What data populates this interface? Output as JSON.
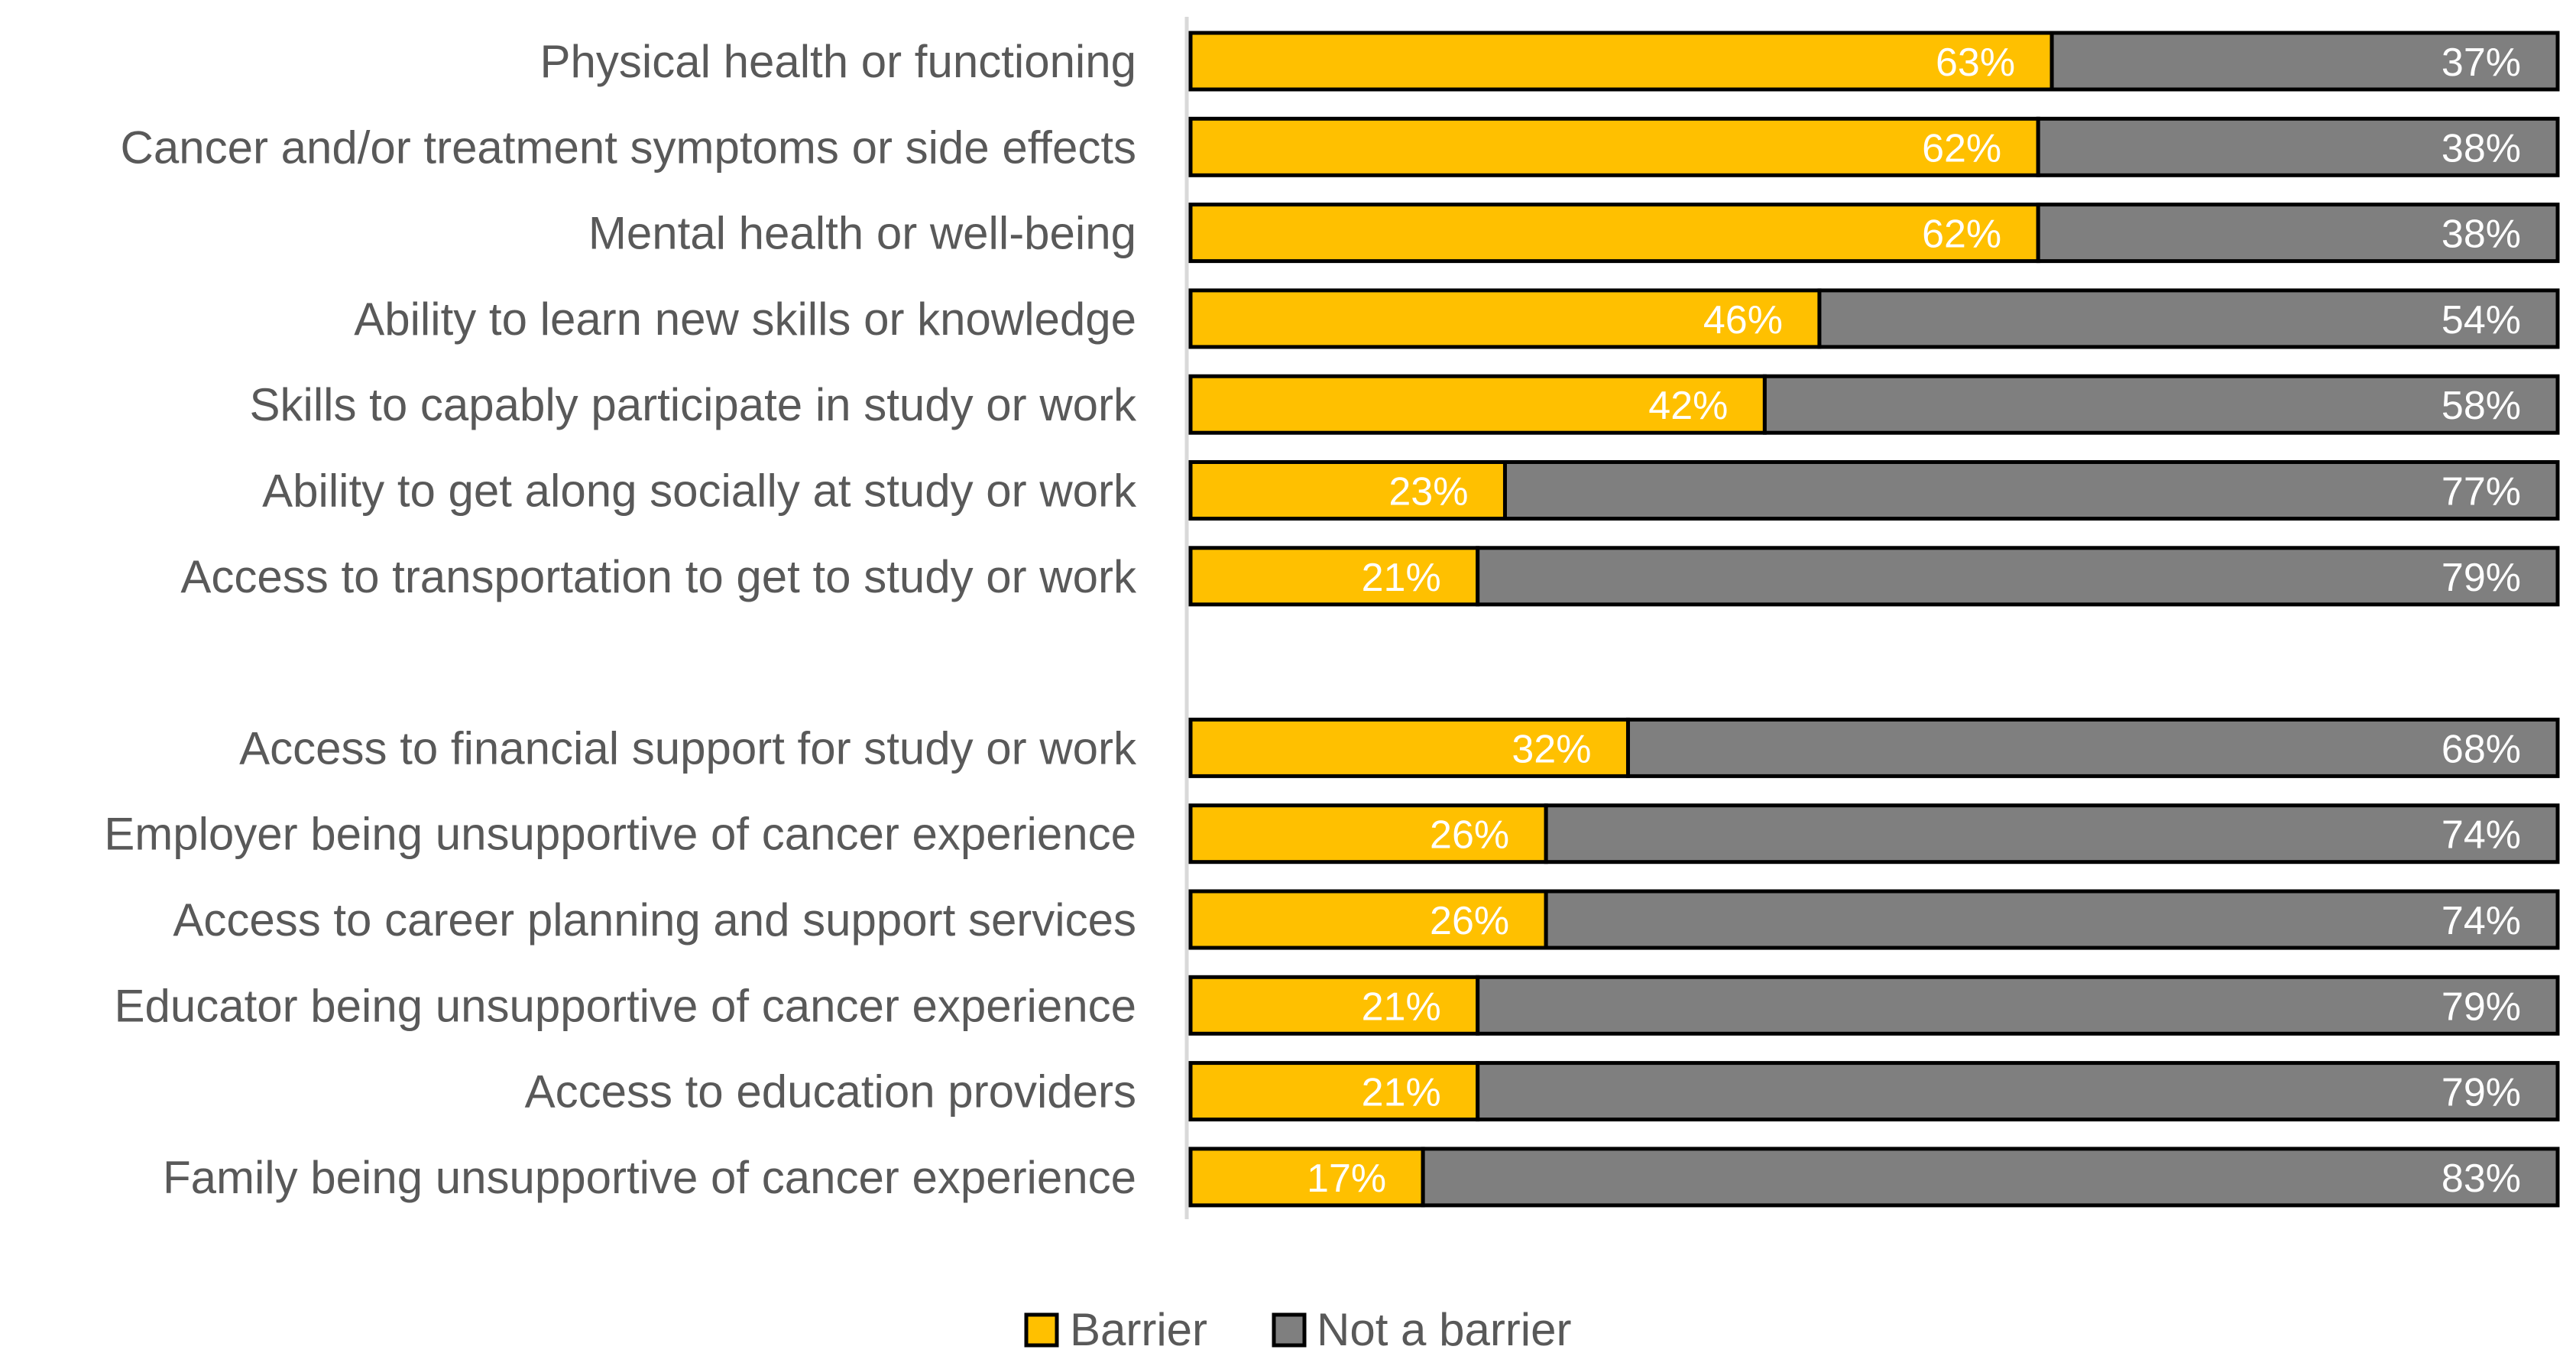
{
  "chart_data": {
    "type": "bar",
    "orientation": "horizontal",
    "stacked": true,
    "percent_stacked": true,
    "title": "",
    "xlabel": "",
    "ylabel": "",
    "xlim": [
      0,
      100
    ],
    "grid": false,
    "legend_position": "bottom",
    "colors": {
      "barrier": "#FFC000",
      "not_barrier": "#7F7F7F",
      "outline": "#000000",
      "axis": "#D9D9D9"
    },
    "groups": [
      {
        "categories": [
          "Physical health or functioning",
          "Cancer and/or treatment symptoms or side effects",
          "Mental health or well-being",
          "Ability to learn new skills or knowledge",
          "Skills to capably participate in study or work",
          "Ability to get along socially at study or work",
          "Access to transportation to get to study or work"
        ],
        "barrier": [
          63,
          62,
          62,
          46,
          42,
          23,
          21
        ],
        "not_barrier": [
          37,
          38,
          38,
          54,
          58,
          77,
          79
        ],
        "barrier_labels": [
          "63%",
          "62%",
          "62%",
          "46%",
          "42%",
          "23%",
          "21%"
        ],
        "not_barrier_labels": [
          "37%",
          "38%",
          "38%",
          "54%",
          "58%",
          "77%",
          "79%"
        ]
      },
      {
        "categories": [
          "Access to financial support for study or work",
          "Employer being unsupportive of cancer experience",
          "Access to career planning and support services",
          "Educator being unsupportive of cancer experience",
          "Access to education providers",
          "Family being unsupportive of cancer experience"
        ],
        "barrier": [
          32,
          26,
          26,
          21,
          21,
          17
        ],
        "not_barrier": [
          68,
          74,
          74,
          79,
          79,
          83
        ],
        "barrier_labels": [
          "32%",
          "26%",
          "26%",
          "21%",
          "21%",
          "17%"
        ],
        "not_barrier_labels": [
          "68%",
          "74%",
          "74%",
          "79%",
          "79%",
          "83%"
        ]
      }
    ],
    "series": [
      {
        "name": "Barrier",
        "key": "barrier"
      },
      {
        "name": "Not a barrier",
        "key": "not_barrier"
      }
    ]
  }
}
